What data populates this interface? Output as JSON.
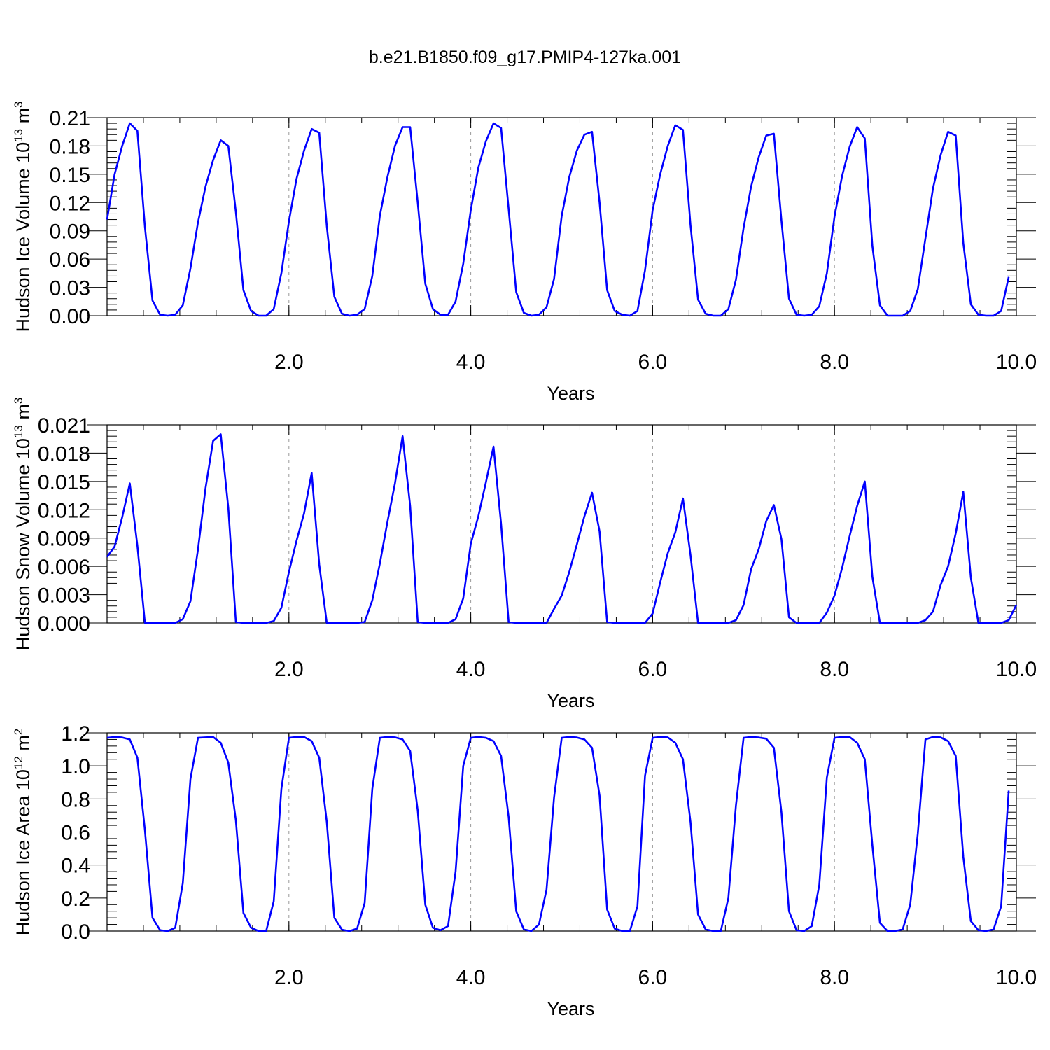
{
  "title": "b.e21.B1850.f09_g17.PMIP4-127ka.001",
  "chart_data": [
    {
      "type": "line",
      "ylabel_main": "Hudson Ice Volume 10",
      "ylabel_exp": "13",
      "ylabel_unit": "m",
      "ylabel_unit_exp": "3",
      "xlabel": "Years",
      "xlim": [
        0.0,
        10.0
      ],
      "ylim": [
        0.0,
        0.21
      ],
      "xticks": [
        2.0,
        4.0,
        6.0,
        8.0,
        10.0
      ],
      "xtick_labels": [
        "2.0",
        "4.0",
        "6.0",
        "8.0",
        "10.0"
      ],
      "yticks": [
        0.0,
        0.03,
        0.06,
        0.09,
        0.12,
        0.15,
        0.18,
        0.21
      ],
      "ytick_labels": [
        "0.00",
        "0.03",
        "0.06",
        "0.09",
        "0.12",
        "0.15",
        "0.18",
        "0.21"
      ],
      "grid_x": [
        2.0,
        4.0,
        6.0,
        8.0
      ],
      "line_color": "#0000ff",
      "series": [
        {
          "x_start": 0.0,
          "x_step": 0.08333,
          "values": [
            0.102,
            0.15,
            0.18,
            0.204,
            0.196,
            0.094,
            0.016,
            0.001,
            0.0,
            0.001,
            0.011,
            0.05,
            0.099,
            0.137,
            0.165,
            0.186,
            0.18,
            0.11,
            0.027,
            0.005,
            0.0,
            0.0,
            0.007,
            0.045,
            0.1,
            0.145,
            0.175,
            0.198,
            0.194,
            0.095,
            0.02,
            0.002,
            0.0,
            0.001,
            0.007,
            0.042,
            0.106,
            0.147,
            0.18,
            0.2,
            0.2,
            0.12,
            0.034,
            0.007,
            0.001,
            0.001,
            0.015,
            0.055,
            0.112,
            0.157,
            0.185,
            0.204,
            0.199,
            0.113,
            0.025,
            0.003,
            0.0,
            0.001,
            0.009,
            0.039,
            0.106,
            0.147,
            0.175,
            0.192,
            0.195,
            0.12,
            0.027,
            0.005,
            0.001,
            0.0,
            0.005,
            0.048,
            0.112,
            0.15,
            0.18,
            0.202,
            0.197,
            0.096,
            0.017,
            0.002,
            0.0,
            0.0,
            0.007,
            0.038,
            0.093,
            0.137,
            0.168,
            0.191,
            0.193,
            0.101,
            0.018,
            0.001,
            0.0,
            0.001,
            0.01,
            0.045,
            0.105,
            0.148,
            0.179,
            0.2,
            0.188,
            0.074,
            0.011,
            0.0,
            0.0,
            0.0,
            0.005,
            0.028,
            0.082,
            0.135,
            0.17,
            0.195,
            0.191,
            0.077,
            0.012,
            0.001,
            0.0,
            0.0,
            0.005,
            0.041
          ]
        }
      ]
    },
    {
      "type": "line",
      "ylabel_main": "Hudson Snow Volume 10",
      "ylabel_exp": "13",
      "ylabel_unit": "m",
      "ylabel_unit_exp": "3",
      "xlabel": "Years",
      "xlim": [
        0.0,
        10.0
      ],
      "ylim": [
        0.0,
        0.021
      ],
      "xticks": [
        2.0,
        4.0,
        6.0,
        8.0,
        10.0
      ],
      "xtick_labels": [
        "2.0",
        "4.0",
        "6.0",
        "8.0",
        "10.0"
      ],
      "yticks": [
        0.0,
        0.003,
        0.006,
        0.009,
        0.012,
        0.015,
        0.018,
        0.021
      ],
      "ytick_labels": [
        "0.000",
        "0.003",
        "0.006",
        "0.009",
        "0.012",
        "0.015",
        "0.018",
        "0.021"
      ],
      "grid_x": [
        2.0,
        4.0,
        6.0,
        8.0
      ],
      "line_color": "#0000ff",
      "series": [
        {
          "x_start": 0.0,
          "x_step": 0.08333,
          "values": [
            0.007,
            0.0081,
            0.0112,
            0.0148,
            0.0082,
            0.0,
            0.0,
            0.0,
            0.0,
            0.0,
            0.0004,
            0.0023,
            0.0078,
            0.0143,
            0.0193,
            0.02,
            0.0122,
            0.0001,
            0.0,
            0.0,
            0.0,
            0.0,
            0.0002,
            0.0016,
            0.0054,
            0.0087,
            0.0116,
            0.0159,
            0.0062,
            0.0,
            0.0,
            0.0,
            0.0,
            0.0,
            0.0001,
            0.0024,
            0.0063,
            0.0107,
            0.0148,
            0.0198,
            0.0124,
            0.0001,
            0.0,
            0.0,
            0.0,
            0.0,
            0.0004,
            0.0026,
            0.0084,
            0.0113,
            0.0149,
            0.0187,
            0.0105,
            0.0001,
            0.0,
            0.0,
            0.0,
            0.0,
            0.0,
            0.0015,
            0.0029,
            0.0054,
            0.0083,
            0.0113,
            0.0138,
            0.0097,
            0.0001,
            0.0,
            0.0,
            0.0,
            0.0,
            0.0,
            0.001,
            0.0043,
            0.0074,
            0.0096,
            0.0132,
            0.0072,
            0.0,
            0.0,
            0.0,
            0.0,
            0.0,
            0.0003,
            0.0019,
            0.0057,
            0.0078,
            0.0108,
            0.0125,
            0.0089,
            0.0006,
            0.0,
            0.0,
            0.0,
            0.0,
            0.0011,
            0.0029,
            0.0058,
            0.0092,
            0.0124,
            0.015,
            0.0049,
            0.0,
            0.0,
            0.0,
            0.0,
            0.0,
            0.0,
            0.0003,
            0.0012,
            0.004,
            0.006,
            0.0095,
            0.0139,
            0.0048,
            0.0,
            0.0,
            0.0,
            0.0,
            0.0003,
            0.0019
          ]
        }
      ]
    },
    {
      "type": "line",
      "ylabel_main": "Hudson Ice Area 10",
      "ylabel_exp": "12",
      "ylabel_unit": "m",
      "ylabel_unit_exp": "2",
      "xlabel": "Years",
      "xlim": [
        0.0,
        10.0
      ],
      "ylim": [
        0.0,
        1.2
      ],
      "xticks": [
        2.0,
        4.0,
        6.0,
        8.0,
        10.0
      ],
      "xtick_labels": [
        "2.0",
        "4.0",
        "6.0",
        "8.0",
        "10.0"
      ],
      "yticks": [
        0.0,
        0.2,
        0.4,
        0.6,
        0.8,
        1.0,
        1.2
      ],
      "ytick_labels": [
        "0.0",
        "0.2",
        "0.4",
        "0.6",
        "0.8",
        "1.0",
        "1.2"
      ],
      "grid_x": [
        2.0,
        4.0,
        6.0,
        8.0
      ],
      "line_color": "#0000ff",
      "series": [
        {
          "x_start": 0.0,
          "x_step": 0.08333,
          "values": [
            1.17,
            1.175,
            1.172,
            1.16,
            1.05,
            0.61,
            0.08,
            0.005,
            0.0,
            0.02,
            0.29,
            0.92,
            1.17,
            1.173,
            1.175,
            1.14,
            1.02,
            0.67,
            0.11,
            0.02,
            0.0,
            0.0,
            0.18,
            0.86,
            1.17,
            1.175,
            1.175,
            1.15,
            1.05,
            0.66,
            0.08,
            0.008,
            0.0,
            0.015,
            0.17,
            0.86,
            1.17,
            1.175,
            1.173,
            1.16,
            1.09,
            0.73,
            0.16,
            0.02,
            0.005,
            0.03,
            0.36,
            1.0,
            1.17,
            1.175,
            1.17,
            1.15,
            1.06,
            0.69,
            0.12,
            0.01,
            0.0,
            0.04,
            0.25,
            0.81,
            1.17,
            1.175,
            1.172,
            1.16,
            1.11,
            0.82,
            0.13,
            0.015,
            0.0,
            0.0,
            0.15,
            0.94,
            1.17,
            1.175,
            1.173,
            1.14,
            1.04,
            0.66,
            0.1,
            0.01,
            0.0,
            0.0,
            0.2,
            0.76,
            1.17,
            1.175,
            1.172,
            1.165,
            1.11,
            0.72,
            0.12,
            0.005,
            0.0,
            0.03,
            0.28,
            0.93,
            1.17,
            1.175,
            1.175,
            1.14,
            1.04,
            0.52,
            0.05,
            0.0,
            0.0,
            0.01,
            0.16,
            0.59,
            1.16,
            1.175,
            1.173,
            1.15,
            1.06,
            0.45,
            0.06,
            0.005,
            0.0,
            0.01,
            0.15,
            0.85
          ]
        }
      ]
    }
  ]
}
